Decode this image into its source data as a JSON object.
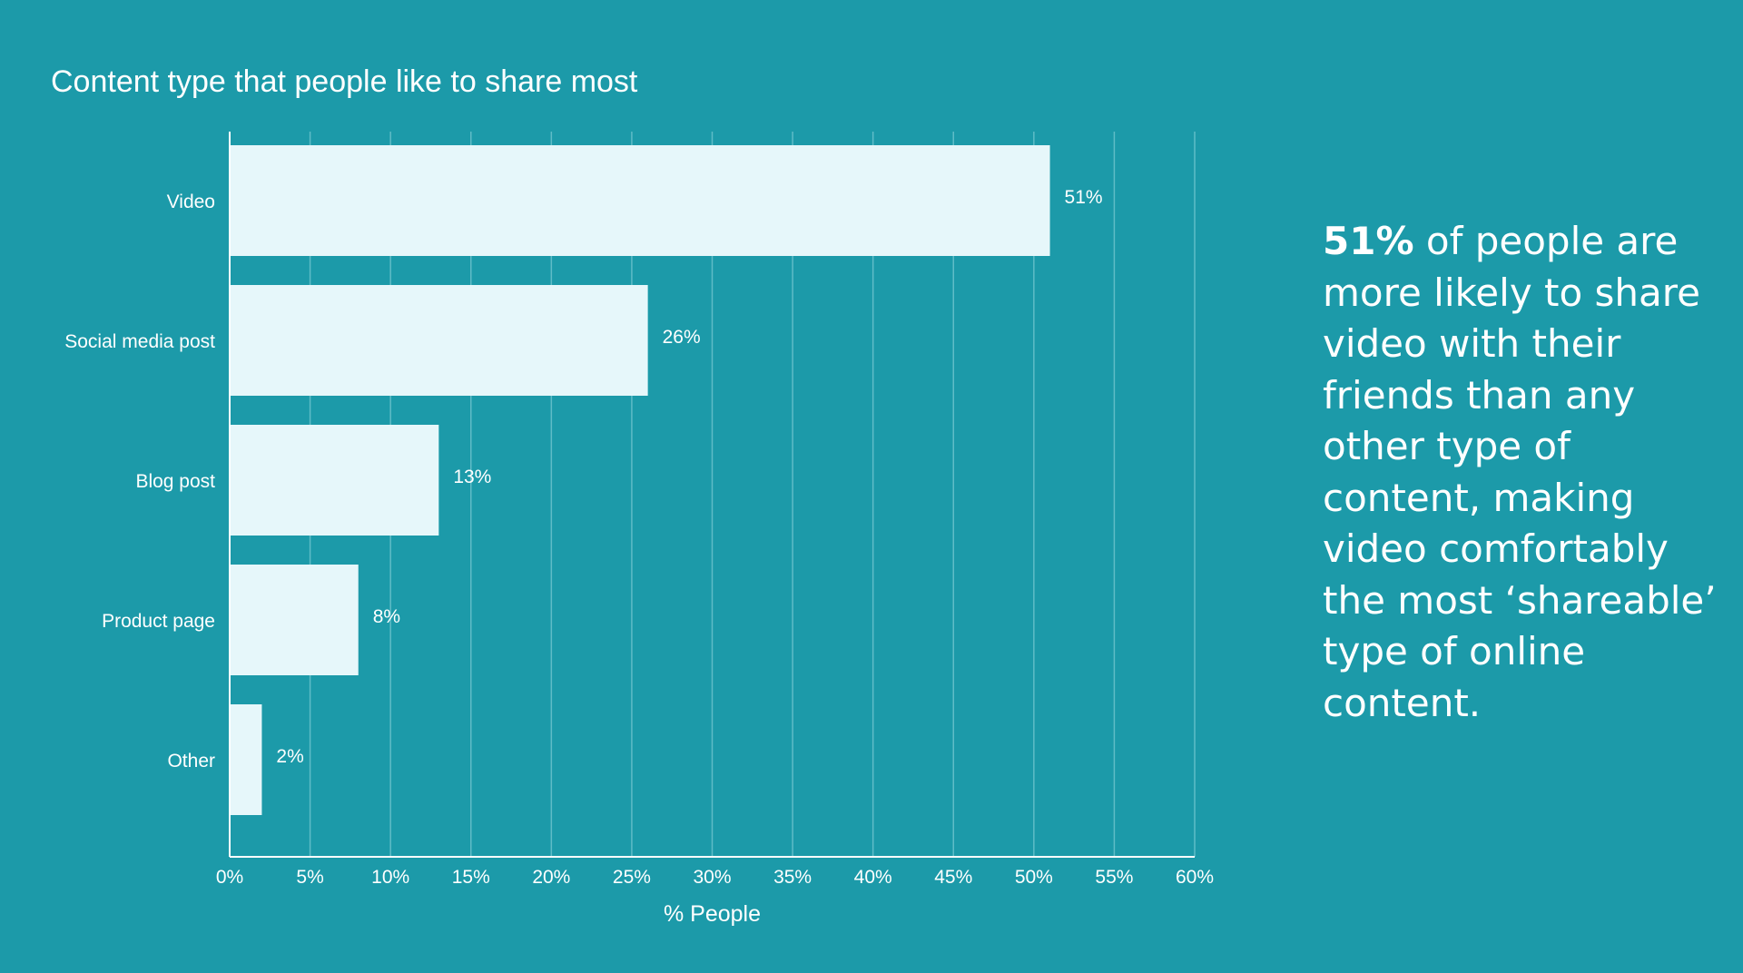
{
  "colors": {
    "background": "#1c9aa9",
    "bar": "#e6f7fa",
    "gridline": "#5fbcc7",
    "axis": "#ffffff",
    "text": "#ffffff"
  },
  "chart_data": {
    "type": "bar",
    "orientation": "horizontal",
    "title": "Content type that people like to share most",
    "xlabel": "% People",
    "ylabel": "",
    "categories": [
      "Video",
      "Social media post",
      "Blog post",
      "Product page",
      "Other"
    ],
    "values": [
      51,
      26,
      13,
      8,
      2
    ],
    "data_labels": [
      "51%",
      "26%",
      "13%",
      "8%",
      "2%"
    ],
    "xlim": [
      0,
      60
    ],
    "xticks": [
      0,
      5,
      10,
      15,
      20,
      25,
      30,
      35,
      40,
      45,
      50,
      55,
      60
    ],
    "xtick_labels": [
      "0%",
      "5%",
      "10%",
      "15%",
      "20%",
      "25%",
      "30%",
      "35%",
      "40%",
      "45%",
      "50%",
      "55%",
      "60%"
    ],
    "grid": "vertical",
    "legend": "none"
  },
  "callout": {
    "highlight": "51%",
    "text": " of people are more likely to share video with their friends than any other type of content, making video comfortably the most ‘shareable’ type of online content."
  }
}
